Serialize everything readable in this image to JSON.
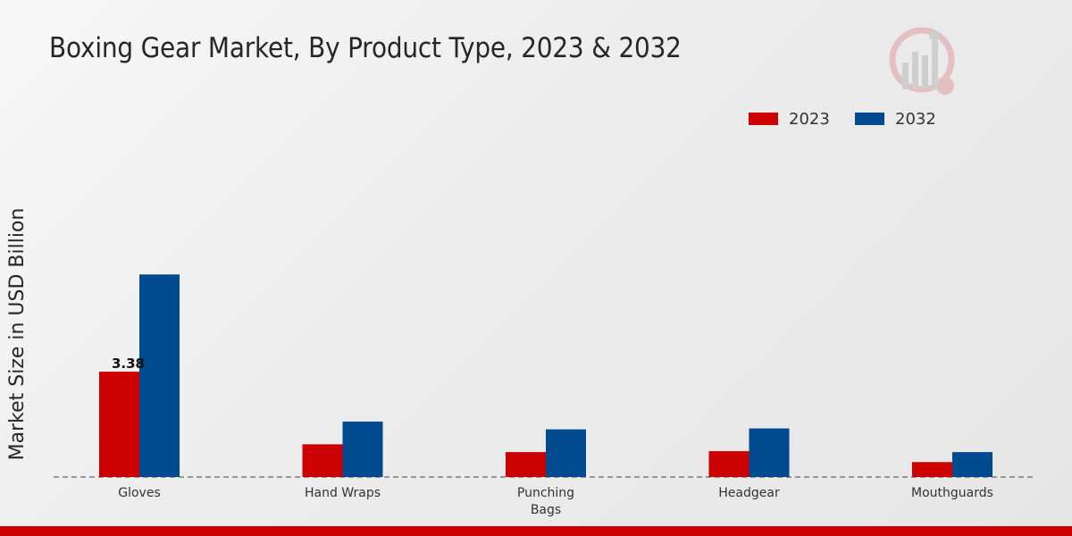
{
  "chart_data": {
    "type": "bar",
    "title": "Boxing Gear Market, By Product Type, 2023 & 2032",
    "xlabel": "",
    "ylabel": "Market Size in USD Billion",
    "categories": [
      "Gloves",
      "Hand Wraps",
      "Punching Bags",
      "Headgear",
      "Mouthguards"
    ],
    "category_lines": [
      [
        "Gloves"
      ],
      [
        "Hand Wraps"
      ],
      [
        "Punching",
        "Bags"
      ],
      [
        "Headgear"
      ],
      [
        "Mouthguards"
      ]
    ],
    "series": [
      {
        "name": "2023",
        "color": "#cc0000",
        "values": [
          3.38,
          1.05,
          0.8,
          0.83,
          0.48
        ]
      },
      {
        "name": "2032",
        "color": "#004a8f",
        "values": [
          6.5,
          1.78,
          1.53,
          1.56,
          0.8
        ]
      }
    ],
    "data_labels": [
      {
        "series": 0,
        "index": 0,
        "text": "3.38"
      }
    ],
    "ylim": [
      0,
      9
    ],
    "grid": false,
    "legend": "top-right"
  }
}
